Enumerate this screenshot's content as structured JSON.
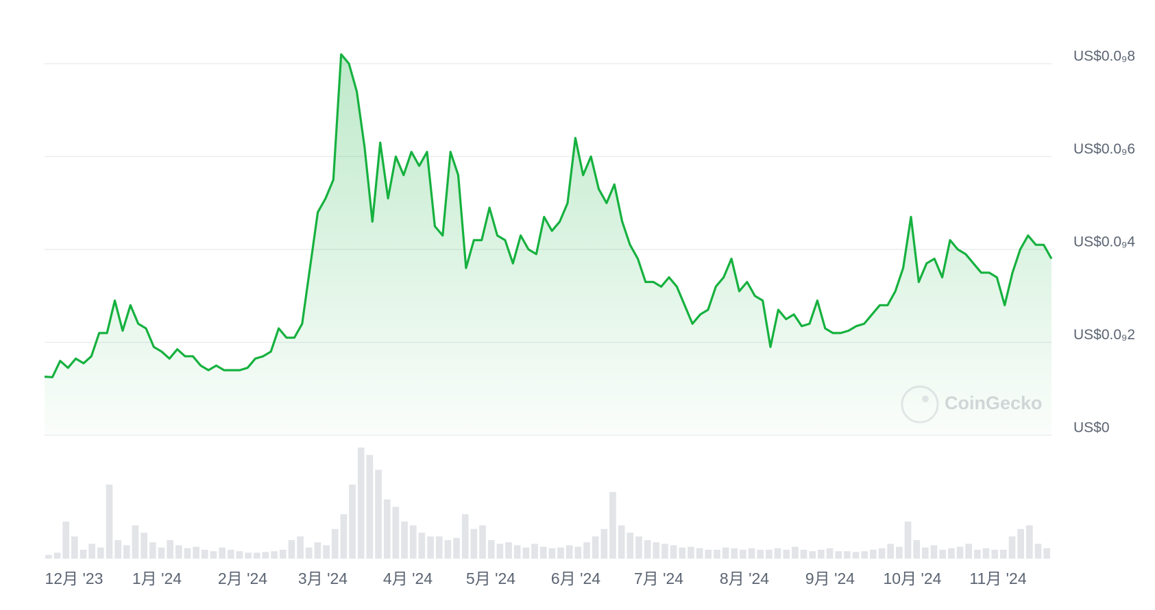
{
  "chart_data": {
    "type": "area",
    "watermark": "CoinGecko",
    "color": "#16b13f",
    "ylim": [
      0,
      8.5e-10
    ],
    "yticks": [
      {
        "value": 0,
        "label": "US$0"
      },
      {
        "value": 2e-10,
        "label": "US$0.0₉2"
      },
      {
        "value": 4e-10,
        "label": "US$0.0₉4"
      },
      {
        "value": 6e-10,
        "label": "US$0.0₉6"
      },
      {
        "value": 8e-10,
        "label": "US$0.0₉8"
      }
    ],
    "grid": true,
    "month_labels": [
      "12月 '23",
      "1月 '24",
      "2月 '24",
      "3月 '24",
      "4月 '24",
      "5月 '24",
      "6月 '24",
      "7月 '24",
      "8月 '24",
      "9月 '24",
      "10月 '24",
      "11月 '24"
    ],
    "series": [
      {
        "values": [
          1.26e-10,
          1.25e-10,
          1.6e-10,
          1.45e-10,
          1.65e-10,
          1.55e-10,
          1.7e-10,
          2.2e-10,
          2.2e-10,
          2.9e-10,
          2.25e-10,
          2.8e-10,
          2.4e-10,
          2.3e-10,
          1.9e-10,
          1.8e-10,
          1.65e-10,
          1.85e-10,
          1.7e-10,
          1.7e-10,
          1.5e-10,
          1.4e-10,
          1.5e-10,
          1.4e-10,
          1.4e-10,
          1.4e-10,
          1.45e-10,
          1.65e-10,
          1.7e-10,
          1.8e-10,
          2.3e-10,
          2.1e-10,
          2.1e-10,
          2.4e-10,
          3.6e-10,
          4.8e-10,
          5.1e-10,
          5.5e-10,
          8.2e-10,
          8e-10,
          7.4e-10,
          6.2e-10,
          4.6e-10,
          6.3e-10,
          5.1e-10,
          6e-10,
          5.6e-10,
          6.1e-10,
          5.8e-10,
          6.1e-10,
          4.5e-10,
          4.3e-10,
          6.1e-10,
          5.6e-10,
          3.6e-10,
          4.2e-10,
          4.2e-10,
          4.9e-10,
          4.3e-10,
          4.2e-10,
          3.7e-10,
          4.3e-10,
          4e-10,
          3.9e-10,
          4.7e-10,
          4.4e-10,
          4.6e-10,
          5e-10,
          6.4e-10,
          5.6e-10,
          6e-10,
          5.3e-10,
          5e-10,
          5.4e-10,
          4.6e-10,
          4.1e-10,
          3.8e-10,
          3.3e-10,
          3.3e-10,
          3.2e-10,
          3.4e-10,
          3.2e-10,
          2.8e-10,
          2.4e-10,
          2.6e-10,
          2.7e-10,
          3.2e-10,
          3.4e-10,
          3.8e-10,
          3.1e-10,
          3.3e-10,
          3e-10,
          2.9e-10,
          1.9e-10,
          2.7e-10,
          2.5e-10,
          2.6e-10,
          2.35e-10,
          2.4e-10,
          2.9e-10,
          2.3e-10,
          2.2e-10,
          2.2e-10,
          2.25e-10,
          2.35e-10,
          2.4e-10,
          2.6e-10,
          2.8e-10,
          2.8e-10,
          3.1e-10,
          3.6e-10,
          4.7e-10,
          3.3e-10,
          3.7e-10,
          3.8e-10,
          3.4e-10,
          4.2e-10,
          4e-10,
          3.9e-10,
          3.7e-10,
          3.5e-10,
          3.5e-10,
          3.4e-10,
          2.8e-10,
          3.5e-10,
          4e-10,
          4.3e-10,
          4.1e-10,
          4.1e-10,
          3.8e-10
        ]
      }
    ],
    "volume": {
      "color": "#e2e4e8",
      "values": [
        5,
        8,
        50,
        30,
        12,
        20,
        15,
        100,
        25,
        18,
        45,
        35,
        22,
        15,
        25,
        18,
        14,
        16,
        12,
        10,
        15,
        12,
        10,
        8,
        8,
        9,
        10,
        12,
        25,
        30,
        15,
        22,
        18,
        40,
        60,
        100,
        150,
        140,
        120,
        80,
        70,
        50,
        45,
        35,
        30,
        30,
        25,
        28,
        60,
        40,
        45,
        25,
        20,
        22,
        18,
        15,
        20,
        16,
        14,
        15,
        18,
        16,
        22,
        30,
        40,
        90,
        45,
        35,
        30,
        25,
        22,
        20,
        18,
        15,
        16,
        14,
        12,
        12,
        15,
        14,
        12,
        14,
        12,
        12,
        14,
        12,
        16,
        12,
        10,
        12,
        14,
        10,
        10,
        9,
        10,
        12,
        14,
        20,
        16,
        50,
        25,
        15,
        18,
        12,
        14,
        16,
        20,
        12,
        14,
        12,
        12,
        30,
        40,
        45,
        20,
        14
      ]
    }
  }
}
